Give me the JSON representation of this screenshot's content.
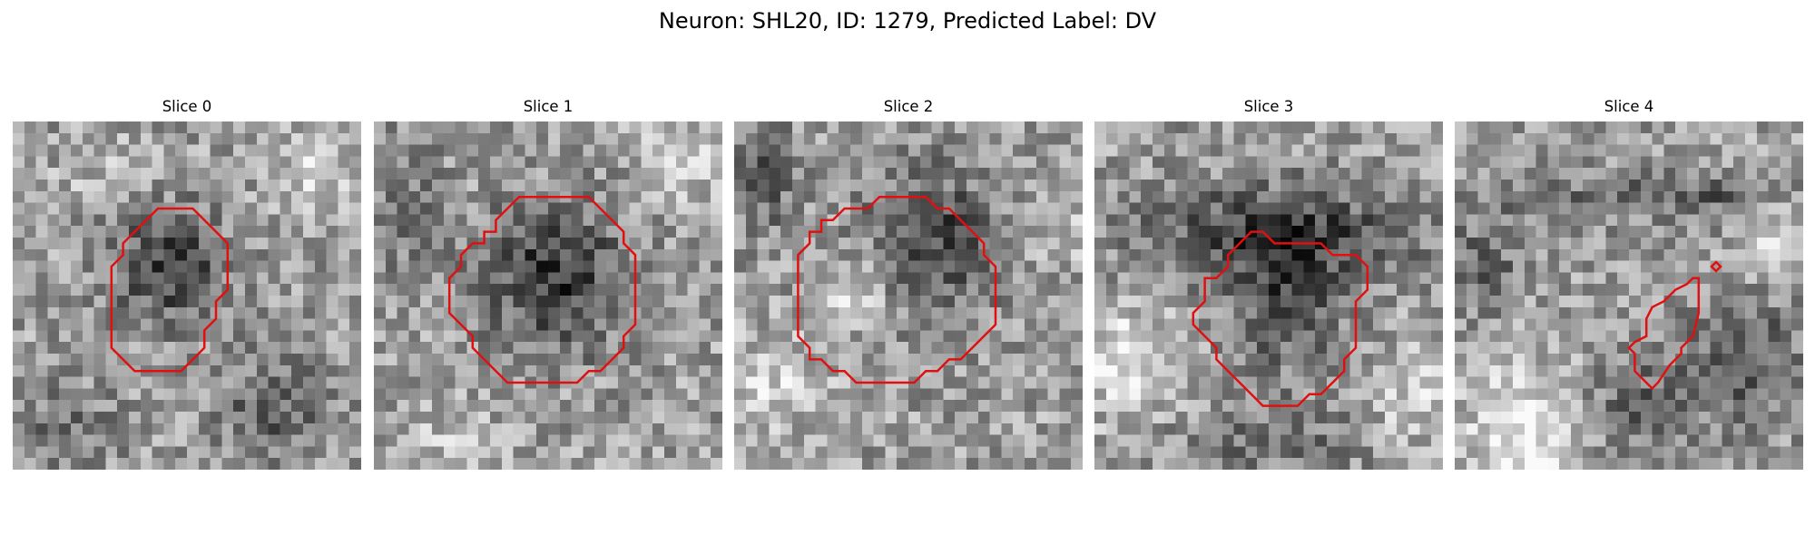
{
  "suptitle": "Neuron: SHL20, ID: 1279, Predicted Label: DV",
  "panels": [
    {
      "title": "Slice 0"
    },
    {
      "title": "Slice 1"
    },
    {
      "title": "Slice 2"
    },
    {
      "title": "Slice 3"
    },
    {
      "title": "Slice 4"
    }
  ],
  "colors": {
    "contour": "#e01010",
    "colormap": "grayscale"
  }
}
